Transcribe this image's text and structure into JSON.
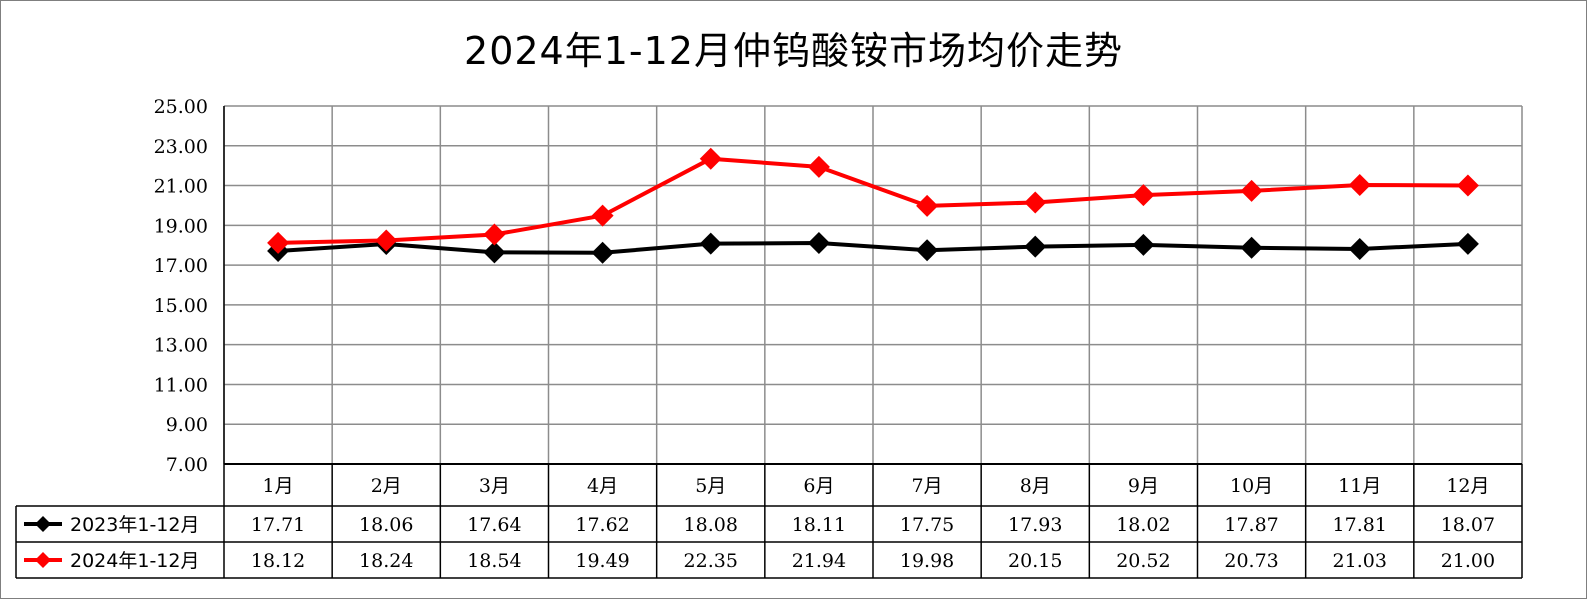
{
  "chart_data": {
    "type": "line",
    "title": "2024年1-12月仲钨酸铵市场均价走势",
    "categories": [
      "1月",
      "2月",
      "3月",
      "4月",
      "5月",
      "6月",
      "7月",
      "8月",
      "9月",
      "10月",
      "11月",
      "12月"
    ],
    "ylim": [
      7,
      25
    ],
    "yticks": [
      "7.00",
      "9.00",
      "11.00",
      "13.00",
      "15.00",
      "17.00",
      "19.00",
      "21.00",
      "23.00",
      "25.00"
    ],
    "grid": true,
    "legend": "bottom-table",
    "series": [
      {
        "name": "2023年1-12月",
        "color": "#000000",
        "values": [
          17.71,
          18.06,
          17.64,
          17.62,
          18.08,
          18.11,
          17.75,
          17.93,
          18.02,
          17.87,
          17.81,
          18.07
        ],
        "labels": [
          "17.71",
          "18.06",
          "17.64",
          "17.62",
          "18.08",
          "18.11",
          "17.75",
          "17.93",
          "18.02",
          "17.87",
          "17.81",
          "18.07"
        ]
      },
      {
        "name": "2024年1-12月",
        "color": "#ff0000",
        "values": [
          18.12,
          18.24,
          18.54,
          19.49,
          22.35,
          21.94,
          19.98,
          20.15,
          20.52,
          20.73,
          21.03,
          21.0
        ],
        "labels": [
          "18.12",
          "18.24",
          "18.54",
          "19.49",
          "22.35",
          "21.94",
          "19.98",
          "20.15",
          "20.52",
          "20.73",
          "21.03",
          "21.00"
        ]
      }
    ]
  }
}
